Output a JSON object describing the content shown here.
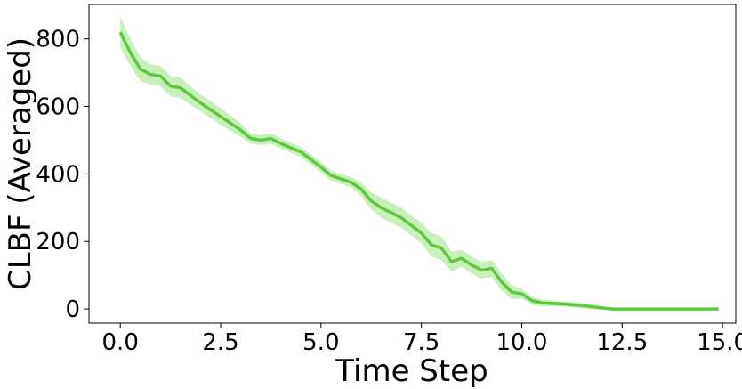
{
  "chart_data": {
    "type": "line",
    "xlabel": "Time Step",
    "ylabel": "CLBF (Averaged)",
    "x": [
      0,
      0.25,
      0.5,
      0.75,
      1,
      1.25,
      1.5,
      2,
      2.5,
      3,
      3.25,
      3.5,
      3.75,
      4,
      4.5,
      5,
      5.25,
      5.5,
      5.75,
      6,
      6.25,
      6.5,
      6.75,
      7,
      7.5,
      7.75,
      8,
      8.25,
      8.5,
      8.75,
      9,
      9.25,
      9.5,
      9.75,
      10,
      10.25,
      10.5,
      11,
      11.5,
      12,
      12.25,
      12.5,
      13,
      14,
      14.9
    ],
    "series": [
      {
        "color": "#5ec93e",
        "band_color": "#c9efba",
        "values": [
          820,
          760,
          710,
          695,
          690,
          660,
          655,
          610,
          570,
          530,
          505,
          500,
          505,
          490,
          465,
          420,
          395,
          385,
          375,
          355,
          320,
          300,
          285,
          270,
          225,
          190,
          180,
          140,
          150,
          130,
          115,
          120,
          80,
          50,
          45,
          25,
          18,
          15,
          10,
          3,
          0,
          0,
          0,
          0,
          0
        ],
        "upper": [
          865,
          800,
          745,
          725,
          720,
          690,
          685,
          635,
          595,
          550,
          520,
          515,
          520,
          505,
          480,
          435,
          410,
          400,
          390,
          375,
          345,
          330,
          315,
          300,
          255,
          225,
          215,
          170,
          175,
          155,
          140,
          145,
          105,
          70,
          60,
          37,
          28,
          23,
          18,
          8,
          0,
          0,
          0,
          0,
          0
        ],
        "lower": [
          775,
          720,
          675,
          665,
          660,
          630,
          625,
          585,
          545,
          510,
          490,
          485,
          490,
          475,
          450,
          405,
          380,
          370,
          360,
          335,
          295,
          270,
          255,
          240,
          195,
          155,
          145,
          110,
          125,
          105,
          90,
          95,
          55,
          30,
          30,
          13,
          8,
          7,
          2,
          -2,
          0,
          0,
          0,
          0,
          0
        ]
      }
    ],
    "xlim": [
      -0.78,
      15.33
    ],
    "ylim": [
      -42,
      902
    ],
    "xticks": [
      {
        "value": 0,
        "label": "0.0"
      },
      {
        "value": 2.5,
        "label": "2.5"
      },
      {
        "value": 5,
        "label": "5.0"
      },
      {
        "value": 7.5,
        "label": "7.5"
      },
      {
        "value": 10,
        "label": "10.0"
      },
      {
        "value": 12.5,
        "label": "12.5"
      },
      {
        "value": 15,
        "label": "15.0"
      }
    ],
    "yticks": [
      0,
      200,
      400,
      600,
      800
    ]
  }
}
